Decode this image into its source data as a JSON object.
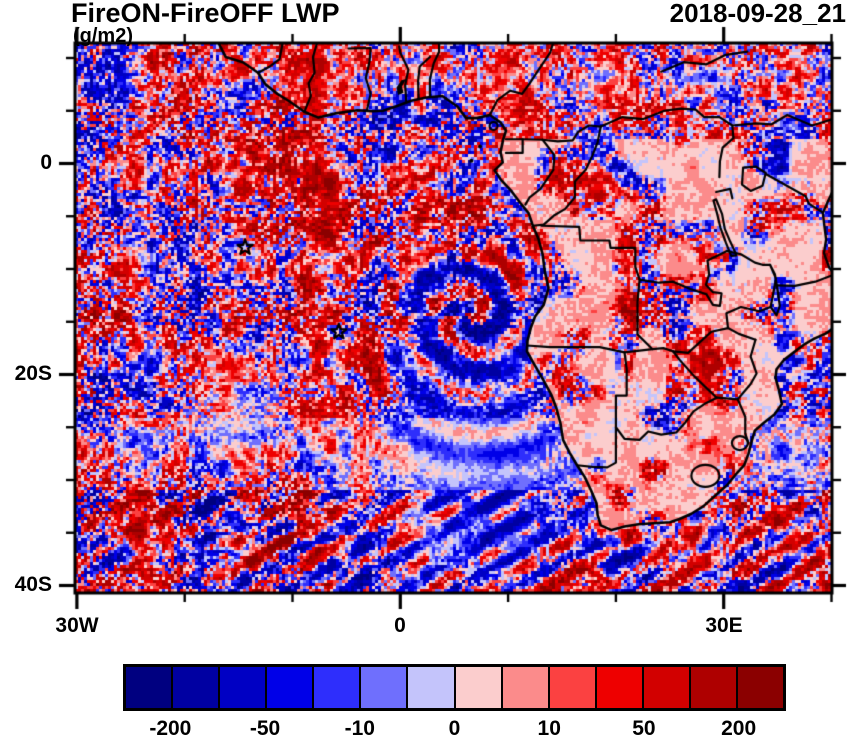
{
  "header": {
    "title": "FireON-FireOFF LWP",
    "units": "(g/m2)",
    "date": "2018-09-28_21"
  },
  "chart_data": {
    "type": "heatmap",
    "title": "FireON-FireOFF LWP",
    "units": "g/m2",
    "timestamp": "2018-09-28_21",
    "description": "Map of liquid water path difference (FireON minus FireOFF) over the southeast Atlantic and southern Africa; noisy positive (red) and negative (blue) differences over ocean, mostly near-zero (pale pink) over land; black coastlines and country borders; two star markers in the Atlantic.",
    "x_axis": {
      "label_ticks": [
        {
          "value": -30,
          "label": "30W"
        },
        {
          "value": 0,
          "label": "0"
        },
        {
          "value": 30,
          "label": "30E"
        }
      ],
      "minor_ticks": [
        -20,
        -10,
        10,
        20,
        40
      ],
      "range_deg_lon": [
        -30.2,
        40.1
      ]
    },
    "y_axis": {
      "label_ticks": [
        {
          "value": 0,
          "label": "0"
        },
        {
          "value": -20,
          "label": "20S"
        },
        {
          "value": -40,
          "label": "40S"
        }
      ],
      "minor_ticks": [
        10,
        5,
        -5,
        -10,
        -15,
        -25,
        -30,
        -35
      ],
      "range_deg_lat": [
        11.4,
        -40.8
      ]
    },
    "colorbar": {
      "levels": [
        -200,
        -100,
        -50,
        -20,
        -10,
        -5,
        0,
        5,
        10,
        20,
        50,
        100,
        200
      ],
      "labeled_levels": [
        -200,
        -50,
        -10,
        0,
        10,
        50,
        200
      ],
      "labeled_boundary_indices": [
        1,
        3,
        5,
        7,
        9,
        11,
        13
      ],
      "colors": [
        "#000080",
        "#0000A2",
        "#0000C4",
        "#0000E8",
        "#2E2EFC",
        "#6F6FFD",
        "#C4C4FB",
        "#FBCDCD",
        "#FB8B8B",
        "#FB4141",
        "#EE0000",
        "#D20000",
        "#AE0000",
        "#8B0000"
      ]
    },
    "background_color": "#FBCDCD",
    "outline_color": "#000000",
    "markers": [
      {
        "name": "star-marker-1",
        "lon": -14.4,
        "lat": -7.95
      },
      {
        "name": "star-marker-2",
        "lon": -5.7,
        "lat": -15.95
      }
    ]
  }
}
